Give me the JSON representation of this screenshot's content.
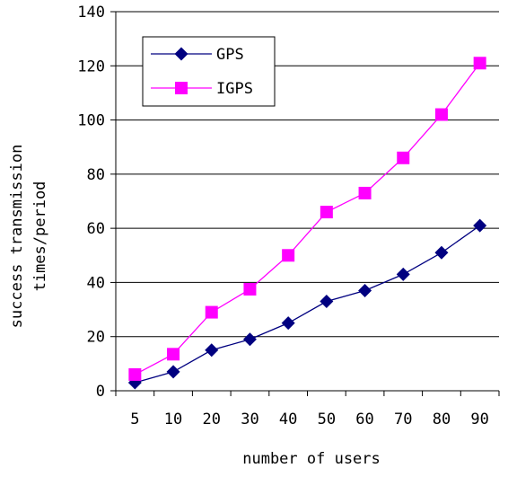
{
  "chart_data": {
    "type": "line",
    "title": "",
    "xlabel": "number of users",
    "ylabel": [
      "success transmission",
      "times/period"
    ],
    "categories": [
      "5",
      "10",
      "20",
      "30",
      "40",
      "50",
      "60",
      "70",
      "80",
      "90"
    ],
    "ylim": [
      0,
      140
    ],
    "yticks": [
      0,
      20,
      40,
      60,
      80,
      100,
      120,
      140
    ],
    "grid": "horizontal",
    "legend_position": "top-left",
    "series": [
      {
        "name": "GPS",
        "color": "#000080",
        "marker": "diamond",
        "values": [
          3,
          7,
          15,
          19,
          25,
          33,
          37,
          43,
          51,
          61
        ]
      },
      {
        "name": "IGPS",
        "color": "#ff00ff",
        "marker": "square",
        "values": [
          6,
          13.5,
          29,
          37.5,
          50,
          66,
          73,
          86,
          102,
          121
        ]
      }
    ]
  }
}
